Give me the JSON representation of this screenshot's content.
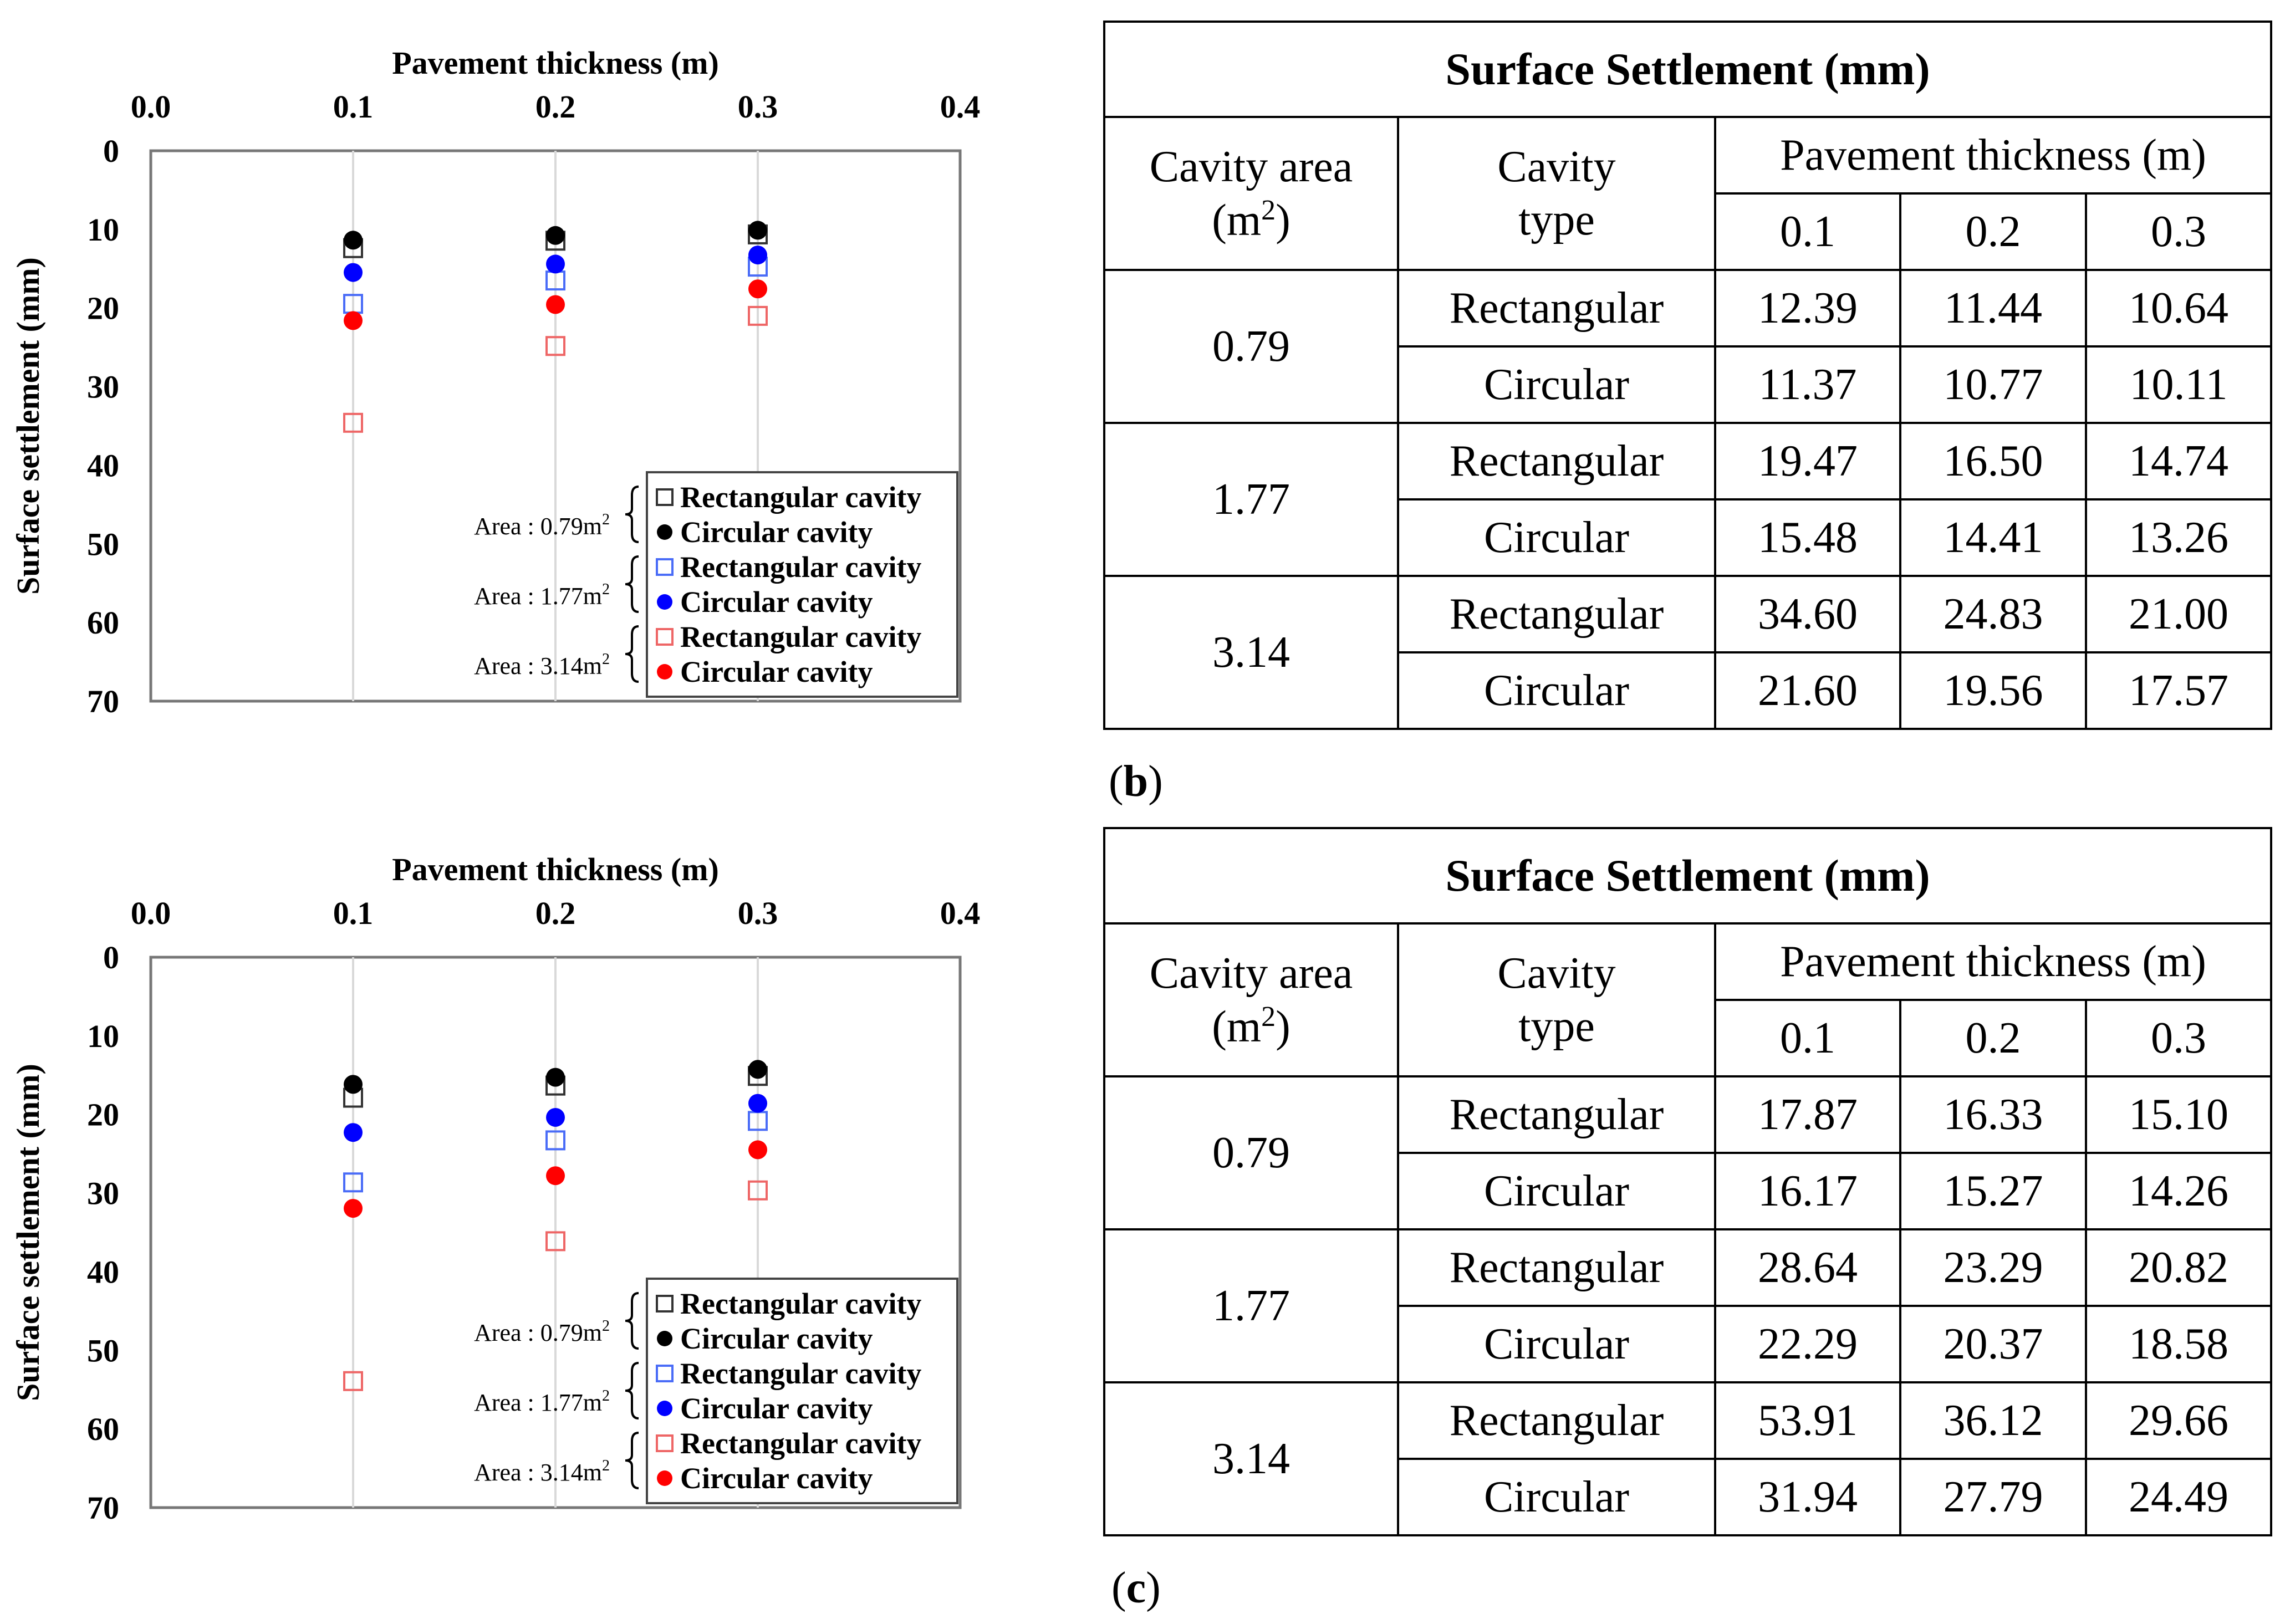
{
  "panels": [
    {
      "chart_data": {
        "type": "scatter",
        "title": "",
        "xlabel": "Pavement thickness (m)",
        "ylabel": "Surface settlement (mm)",
        "xlim": [
          0.0,
          0.4
        ],
        "ylim": [
          0,
          70
        ],
        "y_inverted": true,
        "x_axis_position": "top",
        "grid": "vertical",
        "x_ticks": [
          "0.0",
          "0.1",
          "0.2",
          "0.3",
          "0.4"
        ],
        "y_ticks": [
          "0",
          "10",
          "20",
          "30",
          "40",
          "50",
          "60",
          "70"
        ],
        "x": [
          0.1,
          0.2,
          0.3
        ],
        "legend_groups": [
          "Area : 0.79m",
          "Area : 1.77m",
          "Area : 3.14m"
        ],
        "legend_superscript": "2",
        "series": [
          {
            "name": "Rectangular cavity",
            "area": "0.79",
            "marker": "open-square",
            "color": "#333333",
            "values": [
              12.39,
              11.44,
              10.64
            ]
          },
          {
            "name": "Circular cavity",
            "area": "0.79",
            "marker": "filled-circle",
            "color": "#000000",
            "values": [
              11.37,
              10.77,
              10.11
            ]
          },
          {
            "name": "Rectangular cavity",
            "area": "1.77",
            "marker": "open-square",
            "color": "#4a6cf7",
            "values": [
              19.47,
              16.5,
              14.74
            ]
          },
          {
            "name": "Circular cavity",
            "area": "1.77",
            "marker": "filled-circle",
            "color": "#0000ff",
            "values": [
              15.48,
              14.41,
              13.26
            ]
          },
          {
            "name": "Rectangular cavity",
            "area": "3.14",
            "marker": "open-square",
            "color": "#ee6666",
            "values": [
              34.6,
              24.83,
              21.0
            ]
          },
          {
            "name": "Circular cavity",
            "area": "3.14",
            "marker": "filled-circle",
            "color": "#ff0000",
            "values": [
              21.6,
              19.56,
              17.57
            ]
          }
        ]
      },
      "table": {
        "title": "Surface Settlement (mm)",
        "col_area": "Cavity area",
        "col_area_unit_open": "(m",
        "col_area_unit_sup": "2",
        "col_area_unit_close": ")",
        "col_type_line1": "Cavity",
        "col_type_line2": "type",
        "col_thickness": "Pavement thickness (m)",
        "thickness_values": [
          "0.1",
          "0.2",
          "0.3"
        ],
        "groups": [
          {
            "area": "0.79",
            "rows": [
              {
                "type": "Rectangular",
                "values": [
                  "12.39",
                  "11.44",
                  "10.64"
                ]
              },
              {
                "type": "Circular",
                "values": [
                  "11.37",
                  "10.77",
                  "10.11"
                ]
              }
            ]
          },
          {
            "area": "1.77",
            "rows": [
              {
                "type": "Rectangular",
                "values": [
                  "19.47",
                  "16.50",
                  "14.74"
                ]
              },
              {
                "type": "Circular",
                "values": [
                  "15.48",
                  "14.41",
                  "13.26"
                ]
              }
            ]
          },
          {
            "area": "3.14",
            "rows": [
              {
                "type": "Rectangular",
                "values": [
                  "34.60",
                  "24.83",
                  "21.00"
                ]
              },
              {
                "type": "Circular",
                "values": [
                  "21.60",
                  "19.56",
                  "17.57"
                ]
              }
            ]
          }
        ]
      },
      "caption": {
        "open": "(",
        "letter": "b",
        "close": ")"
      }
    },
    {
      "chart_data": {
        "type": "scatter",
        "title": "",
        "xlabel": "Pavement thickness (m)",
        "ylabel": "Surface settlement (mm)",
        "xlim": [
          0.0,
          0.4
        ],
        "ylim": [
          0,
          70
        ],
        "y_inverted": true,
        "x_axis_position": "top",
        "grid": "vertical",
        "x_ticks": [
          "0.0",
          "0.1",
          "0.2",
          "0.3",
          "0.4"
        ],
        "y_ticks": [
          "0",
          "10",
          "20",
          "30",
          "40",
          "50",
          "60",
          "70"
        ],
        "x": [
          0.1,
          0.2,
          0.3
        ],
        "legend_groups": [
          "Area : 0.79m",
          "Area : 1.77m",
          "Area : 3.14m"
        ],
        "legend_superscript": "2",
        "series": [
          {
            "name": "Rectangular cavity",
            "area": "0.79",
            "marker": "open-square",
            "color": "#333333",
            "values": [
              17.87,
              16.33,
              15.1
            ]
          },
          {
            "name": "Circular cavity",
            "area": "0.79",
            "marker": "filled-circle",
            "color": "#000000",
            "values": [
              16.17,
              15.27,
              14.26
            ]
          },
          {
            "name": "Rectangular cavity",
            "area": "1.77",
            "marker": "open-square",
            "color": "#4a6cf7",
            "values": [
              28.64,
              23.29,
              20.82
            ]
          },
          {
            "name": "Circular cavity",
            "area": "1.77",
            "marker": "filled-circle",
            "color": "#0000ff",
            "values": [
              22.29,
              20.37,
              18.58
            ]
          },
          {
            "name": "Rectangular cavity",
            "area": "3.14",
            "marker": "open-square",
            "color": "#ee6666",
            "values": [
              53.91,
              36.12,
              29.66
            ]
          },
          {
            "name": "Circular cavity",
            "area": "3.14",
            "marker": "filled-circle",
            "color": "#ff0000",
            "values": [
              31.94,
              27.79,
              24.49
            ]
          }
        ]
      },
      "table": {
        "title": "Surface Settlement (mm)",
        "col_area": "Cavity area",
        "col_area_unit_open": "(m",
        "col_area_unit_sup": "2",
        "col_area_unit_close": ")",
        "col_type_line1": "Cavity",
        "col_type_line2": "type",
        "col_thickness": "Pavement thickness (m)",
        "thickness_values": [
          "0.1",
          "0.2",
          "0.3"
        ],
        "groups": [
          {
            "area": "0.79",
            "rows": [
              {
                "type": "Rectangular",
                "values": [
                  "17.87",
                  "16.33",
                  "15.10"
                ]
              },
              {
                "type": "Circular",
                "values": [
                  "16.17",
                  "15.27",
                  "14.26"
                ]
              }
            ]
          },
          {
            "area": "1.77",
            "rows": [
              {
                "type": "Rectangular",
                "values": [
                  "28.64",
                  "23.29",
                  "20.82"
                ]
              },
              {
                "type": "Circular",
                "values": [
                  "22.29",
                  "20.37",
                  "18.58"
                ]
              }
            ]
          },
          {
            "area": "3.14",
            "rows": [
              {
                "type": "Rectangular",
                "values": [
                  "53.91",
                  "36.12",
                  "29.66"
                ]
              },
              {
                "type": "Circular",
                "values": [
                  "31.94",
                  "27.79",
                  "24.49"
                ]
              }
            ]
          }
        ]
      },
      "caption": {
        "open": "(",
        "letter": "c",
        "close": ")"
      }
    }
  ]
}
